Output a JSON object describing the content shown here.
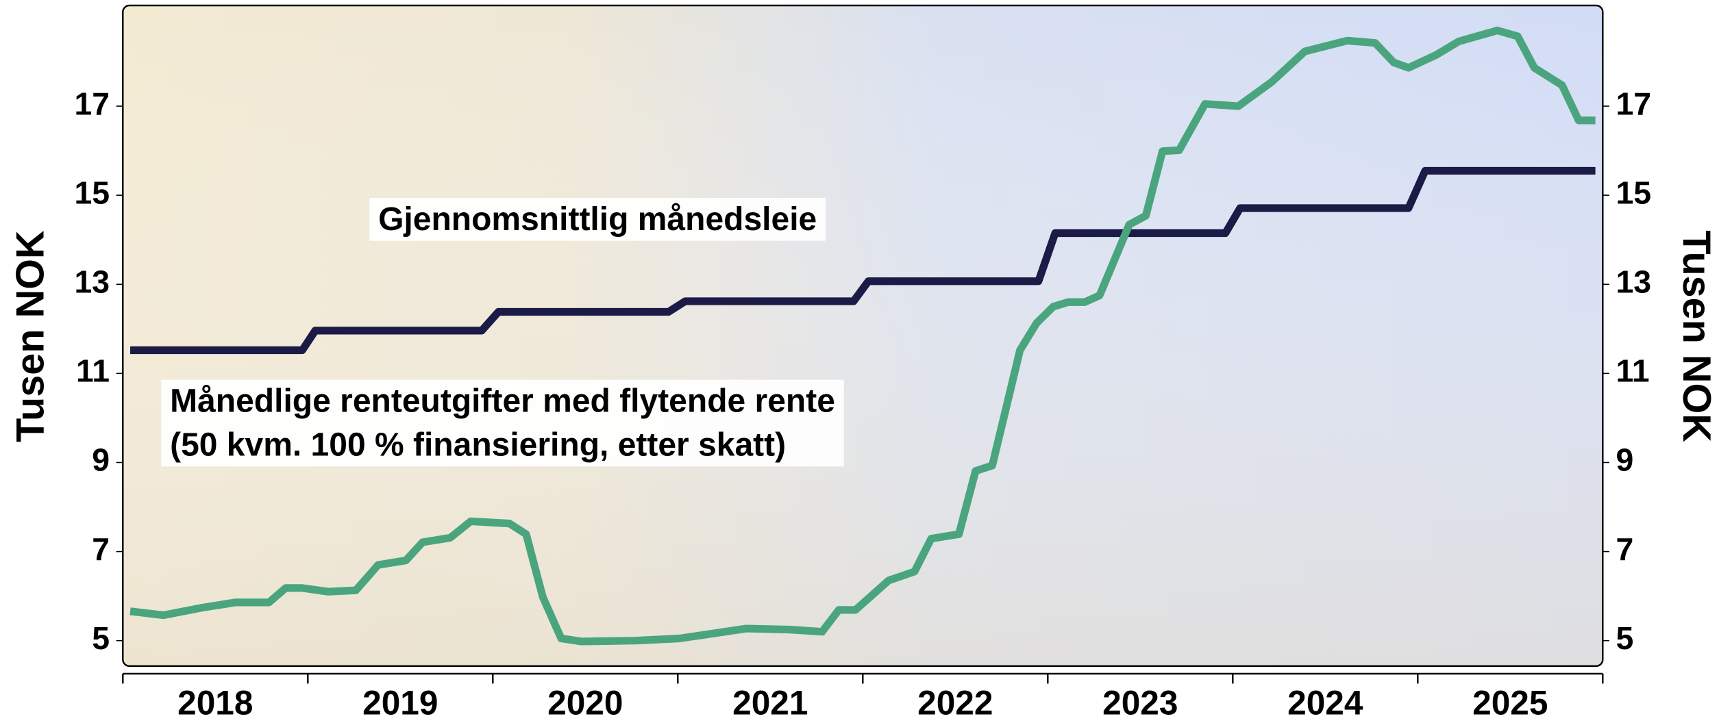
{
  "chart_data": {
    "type": "line",
    "y_label": "Tusen NOK",
    "y2_label": "Tusen NOK",
    "categories": [
      "2018",
      "2019",
      "2020",
      "2021",
      "2022",
      "2023",
      "2024",
      "2025"
    ],
    "xlim": [
      2018,
      2026
    ],
    "xticks": [
      2018,
      2019,
      2020,
      2021,
      2022,
      2023,
      2024,
      2025,
      2026
    ],
    "ylim": [
      4.43,
      19.26
    ],
    "yticks": [
      5,
      7,
      9,
      11,
      13,
      15,
      17
    ],
    "y2lim": [
      4.43,
      19.26
    ],
    "y2ticks": [
      5,
      7,
      9,
      11,
      13,
      15,
      17
    ],
    "annotations": [
      [
        "Gjennomsnittlig månedsleie"
      ],
      [
        "Månedlige renteutgifter med flytende rente",
        "(50 kvm. 100 % finansiering, etter skatt)"
      ]
    ],
    "series": [
      {
        "color": "#1c1a46",
        "x": [
          2018.04,
          2018.97,
          2019.04,
          2019.94,
          2020.03,
          2020.95,
          2021.04,
          2021.95,
          2022.03,
          2022.95,
          2023.04,
          2023.96,
          2024.04,
          2024.95,
          2025.04,
          2025.96
        ],
        "values": [
          11.52,
          11.52,
          11.96,
          11.96,
          12.38,
          12.38,
          12.62,
          12.62,
          13.07,
          13.07,
          14.15,
          14.15,
          14.71,
          14.71,
          15.55,
          15.55
        ]
      },
      {
        "color": "#4aa57f",
        "x": [
          2018.04,
          2018.22,
          2018.43,
          2018.61,
          2018.79,
          2018.88,
          2018.97,
          2019.11,
          2019.26,
          2019.38,
          2019.53,
          2019.62,
          2019.77,
          2019.88,
          2020.09,
          2020.18,
          2020.27,
          2020.37,
          2020.48,
          2020.77,
          2021.01,
          2021.37,
          2021.6,
          2021.78,
          2021.87,
          2021.96,
          2022.14,
          2022.28,
          2022.37,
          2022.52,
          2022.61,
          2022.7,
          2022.85,
          2022.94,
          2023.03,
          2023.11,
          2023.2,
          2023.28,
          2023.44,
          2023.53,
          2023.62,
          2023.71,
          2023.85,
          2024.03,
          2024.21,
          2024.39,
          2024.62,
          2024.77,
          2024.87,
          2024.95,
          2025.1,
          2025.22,
          2025.43,
          2025.54,
          2025.63,
          2025.78,
          2025.87,
          2025.96
        ],
        "values": [
          5.66,
          5.57,
          5.74,
          5.86,
          5.86,
          6.18,
          6.18,
          6.1,
          6.13,
          6.7,
          6.8,
          7.21,
          7.31,
          7.68,
          7.63,
          7.39,
          5.98,
          5.05,
          4.98,
          5.0,
          5.05,
          5.27,
          5.25,
          5.2,
          5.69,
          5.69,
          6.35,
          6.55,
          7.29,
          7.39,
          8.81,
          8.93,
          11.52,
          12.13,
          12.5,
          12.6,
          12.6,
          12.75,
          14.34,
          14.54,
          15.99,
          16.01,
          17.05,
          17.0,
          17.54,
          18.23,
          18.47,
          18.42,
          17.98,
          17.86,
          18.15,
          18.45,
          18.7,
          18.57,
          17.86,
          17.47,
          16.68,
          16.68
        ]
      }
    ]
  }
}
